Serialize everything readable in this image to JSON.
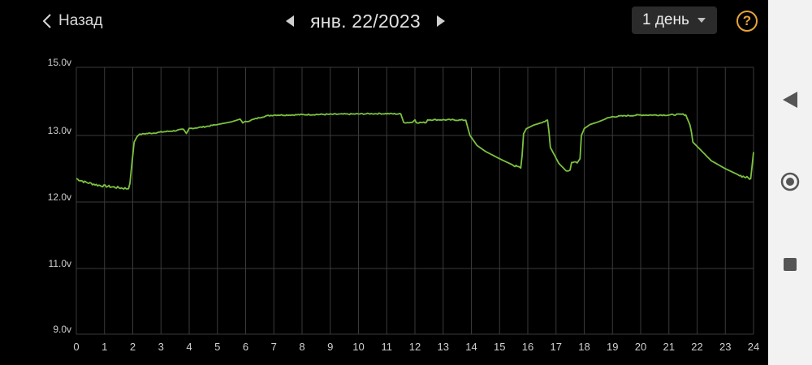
{
  "header": {
    "back_label": "Назад",
    "date_label": "янв. 22/2023",
    "period_label": "1 день",
    "help_label": "?"
  },
  "icons": {
    "back": "chevron-left-icon",
    "prev": "triangle-left-icon",
    "next": "triangle-right-icon",
    "dropdown": "caret-down-icon",
    "help": "question-circle-icon"
  },
  "colors": {
    "background": "#000000",
    "line": "#7cc23f",
    "grid": "#3a3a3a",
    "help_accent": "#e8a33a",
    "select_bg": "#2b2b2b"
  },
  "chart_data": {
    "type": "line",
    "ylim": [
      9.0,
      15.0
    ],
    "xlim": [
      0,
      24
    ],
    "yticks": [
      15.0,
      13.0,
      12.0,
      11.0,
      9.0
    ],
    "ytick_labels": [
      "15.0v",
      "13.0v",
      "12.0v",
      "11.0v",
      "9.0v"
    ],
    "xticks": [
      0,
      1,
      2,
      3,
      4,
      5,
      6,
      7,
      8,
      9,
      10,
      11,
      12,
      13,
      14,
      15,
      16,
      17,
      18,
      19,
      20,
      21,
      22,
      23,
      24
    ],
    "xtick_labels": [
      "0",
      "1",
      "2",
      "3",
      "4",
      "5",
      "6",
      "7",
      "8",
      "9",
      "10",
      "11",
      "12",
      "13",
      "14",
      "15",
      "16",
      "17",
      "18",
      "19",
      "20",
      "21",
      "22",
      "23",
      "24"
    ],
    "grid": true,
    "series": [
      {
        "x": [
          0,
          0.3,
          0.8,
          1.2,
          1.6,
          1.85,
          1.9,
          1.95,
          2.05,
          2.2,
          2.4,
          2.7,
          3.0,
          3.5,
          3.8,
          3.9,
          4.0,
          4.5,
          5.0,
          5.5,
          5.8,
          5.9,
          6.0,
          6.2,
          6.4,
          6.6,
          6.8,
          7.0,
          7.5,
          8.0,
          9.0,
          10.0,
          10.5,
          11.0,
          11.5,
          11.6,
          11.65,
          11.9,
          12.0,
          12.05,
          12.4,
          12.45,
          13.0,
          13.8,
          13.85,
          13.95,
          14.2,
          14.5,
          15.0,
          15.5,
          15.75,
          15.8,
          15.85,
          15.95,
          16.2,
          16.5,
          16.7,
          16.75,
          16.8,
          17.1,
          17.4,
          17.5,
          17.55,
          17.65,
          17.75,
          17.85,
          17.9,
          18.0,
          18.2,
          18.5,
          18.8,
          19.0,
          19.5,
          20.0,
          21.0,
          21.5,
          21.6,
          21.75,
          21.85,
          22.2,
          22.5,
          23.0,
          23.5,
          23.9,
          24.0
        ],
        "y": [
          12.35,
          12.3,
          12.25,
          12.23,
          12.21,
          12.2,
          12.28,
          12.5,
          12.9,
          13.02,
          13.05,
          13.07,
          13.1,
          13.14,
          13.18,
          13.06,
          13.2,
          13.25,
          13.32,
          13.4,
          13.48,
          13.38,
          13.4,
          13.45,
          13.5,
          13.55,
          13.58,
          13.6,
          13.6,
          13.61,
          13.62,
          13.63,
          13.64,
          13.64,
          13.63,
          13.38,
          13.38,
          13.38,
          13.46,
          13.38,
          13.38,
          13.46,
          13.46,
          13.45,
          13.3,
          13.0,
          12.85,
          12.76,
          12.65,
          12.55,
          12.51,
          12.7,
          13.05,
          13.2,
          13.3,
          13.38,
          13.45,
          13.1,
          12.82,
          12.58,
          12.45,
          12.48,
          12.6,
          12.6,
          12.6,
          12.65,
          13.0,
          13.2,
          13.32,
          13.4,
          13.5,
          13.55,
          13.58,
          13.6,
          13.6,
          13.62,
          13.6,
          13.3,
          12.9,
          12.75,
          12.62,
          12.5,
          12.4,
          12.35,
          12.75
        ]
      }
    ]
  }
}
